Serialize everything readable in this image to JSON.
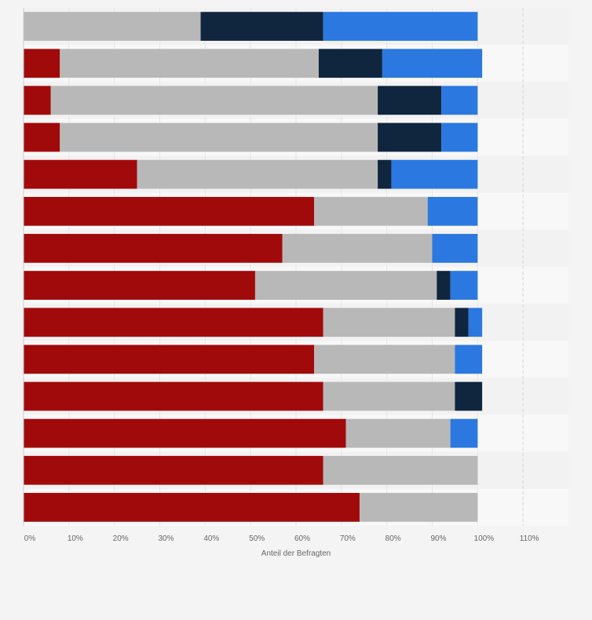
{
  "chart_data": {
    "type": "bar",
    "orientation": "horizontal",
    "stacked": true,
    "title": "",
    "xlabel": "Anteil der Befragten",
    "ylabel": "",
    "xlim": [
      0,
      120
    ],
    "x_ticks": [
      0,
      10,
      20,
      30,
      40,
      50,
      60,
      70,
      80,
      90,
      100,
      110
    ],
    "x_tick_labels": [
      "0%",
      "10%",
      "20%",
      "30%",
      "40%",
      "50%",
      "60%",
      "70%",
      "80%",
      "90%",
      "100%",
      "110%"
    ],
    "grid": true,
    "legend": "none",
    "categories": [
      "",
      "",
      "",
      "",
      "",
      "",
      "",
      "",
      "",
      "",
      "",
      "",
      "",
      ""
    ],
    "series": [
      {
        "color": "#a10a0b",
        "values": [
          0,
          8,
          6,
          8,
          25,
          64,
          57,
          51,
          66,
          64,
          66,
          71,
          66,
          74
        ]
      },
      {
        "color": "#b8b8b8",
        "values": [
          39,
          57,
          72,
          70,
          53,
          25,
          33,
          40,
          29,
          31,
          29,
          23,
          34,
          26
        ]
      },
      {
        "color": "#10263f",
        "values": [
          27,
          14,
          14,
          14,
          3,
          0,
          0,
          3,
          3,
          0,
          6,
          0,
          0,
          0
        ]
      },
      {
        "color": "#2b78e0",
        "values": [
          34,
          22,
          8,
          8,
          19,
          11,
          10,
          6,
          3,
          6,
          0,
          6,
          0,
          0
        ]
      }
    ]
  }
}
